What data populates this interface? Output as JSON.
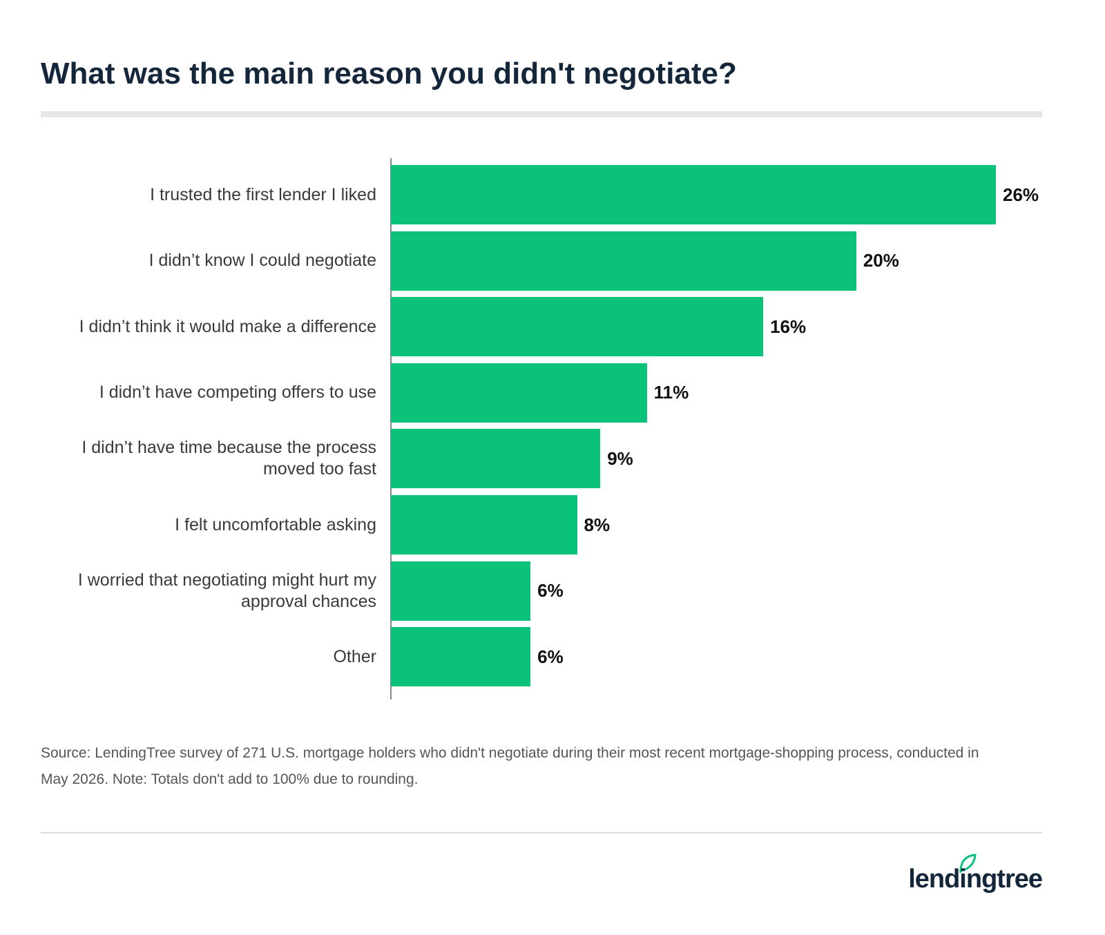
{
  "chart_data": {
    "type": "bar",
    "orientation": "horizontal",
    "title": "What was the main reason you didn't negotiate?",
    "categories": [
      "I trusted the first lender I liked",
      "I didn’t know I could negotiate",
      "I didn’t think it would make a difference",
      "I didn’t have competing offers to use",
      "I didn’t have time because the process moved too fast",
      "I felt uncomfortable asking",
      "I worried that negotiating might hurt my approval chances",
      "Other"
    ],
    "values": [
      26,
      20,
      16,
      11,
      9,
      8,
      6,
      6
    ],
    "value_labels": [
      "26%",
      "20%",
      "16%",
      "11%",
      "9%",
      "8%",
      "6%",
      "6%"
    ],
    "color": "#0bc27a",
    "source": "Source: LendingTree survey of 271 U.S. mortgage holders who didn't negotiate during their most recent mortgage-shopping process, conducted in May 2026. Note: Totals don't add to 100% due to rounding."
  },
  "footer": {
    "logo": "lendingtree"
  }
}
